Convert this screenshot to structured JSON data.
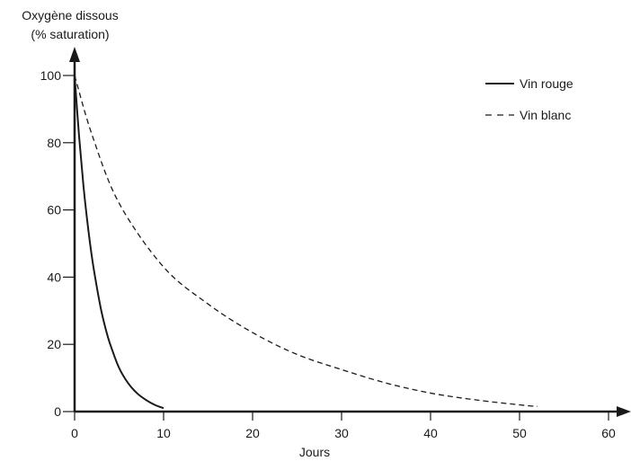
{
  "chart_data": {
    "type": "line",
    "ylabel_line1": "Oxygène dissous",
    "ylabel_line2": "(% saturation)",
    "xlabel": "Jours",
    "xlim": [
      0,
      60
    ],
    "ylim": [
      0,
      100
    ],
    "xticks": [
      0,
      10,
      20,
      30,
      40,
      50,
      60
    ],
    "yticks": [
      0,
      20,
      40,
      60,
      80,
      100
    ],
    "grid": false,
    "legend_position": "top-right",
    "series": [
      {
        "name": "Vin rouge",
        "style": "solid",
        "color": "#1a1a1a",
        "x": [
          0,
          0.5,
          1,
          1.5,
          2,
          2.5,
          3,
          3.5,
          4,
          5,
          6,
          7,
          8,
          9,
          10
        ],
        "y": [
          100,
          82,
          67,
          55,
          45,
          37,
          30,
          24.5,
          20,
          13,
          8.5,
          5.5,
          3.5,
          2,
          1
        ]
      },
      {
        "name": "Vin blanc",
        "style": "dashed",
        "color": "#1a1a1a",
        "x": [
          0,
          2,
          5,
          10,
          15,
          20,
          25,
          30,
          35,
          40,
          45,
          50,
          52
        ],
        "y": [
          100,
          82,
          62,
          43,
          32,
          23.5,
          17,
          12.5,
          8.5,
          5.5,
          3.5,
          2,
          1.5
        ]
      }
    ]
  }
}
